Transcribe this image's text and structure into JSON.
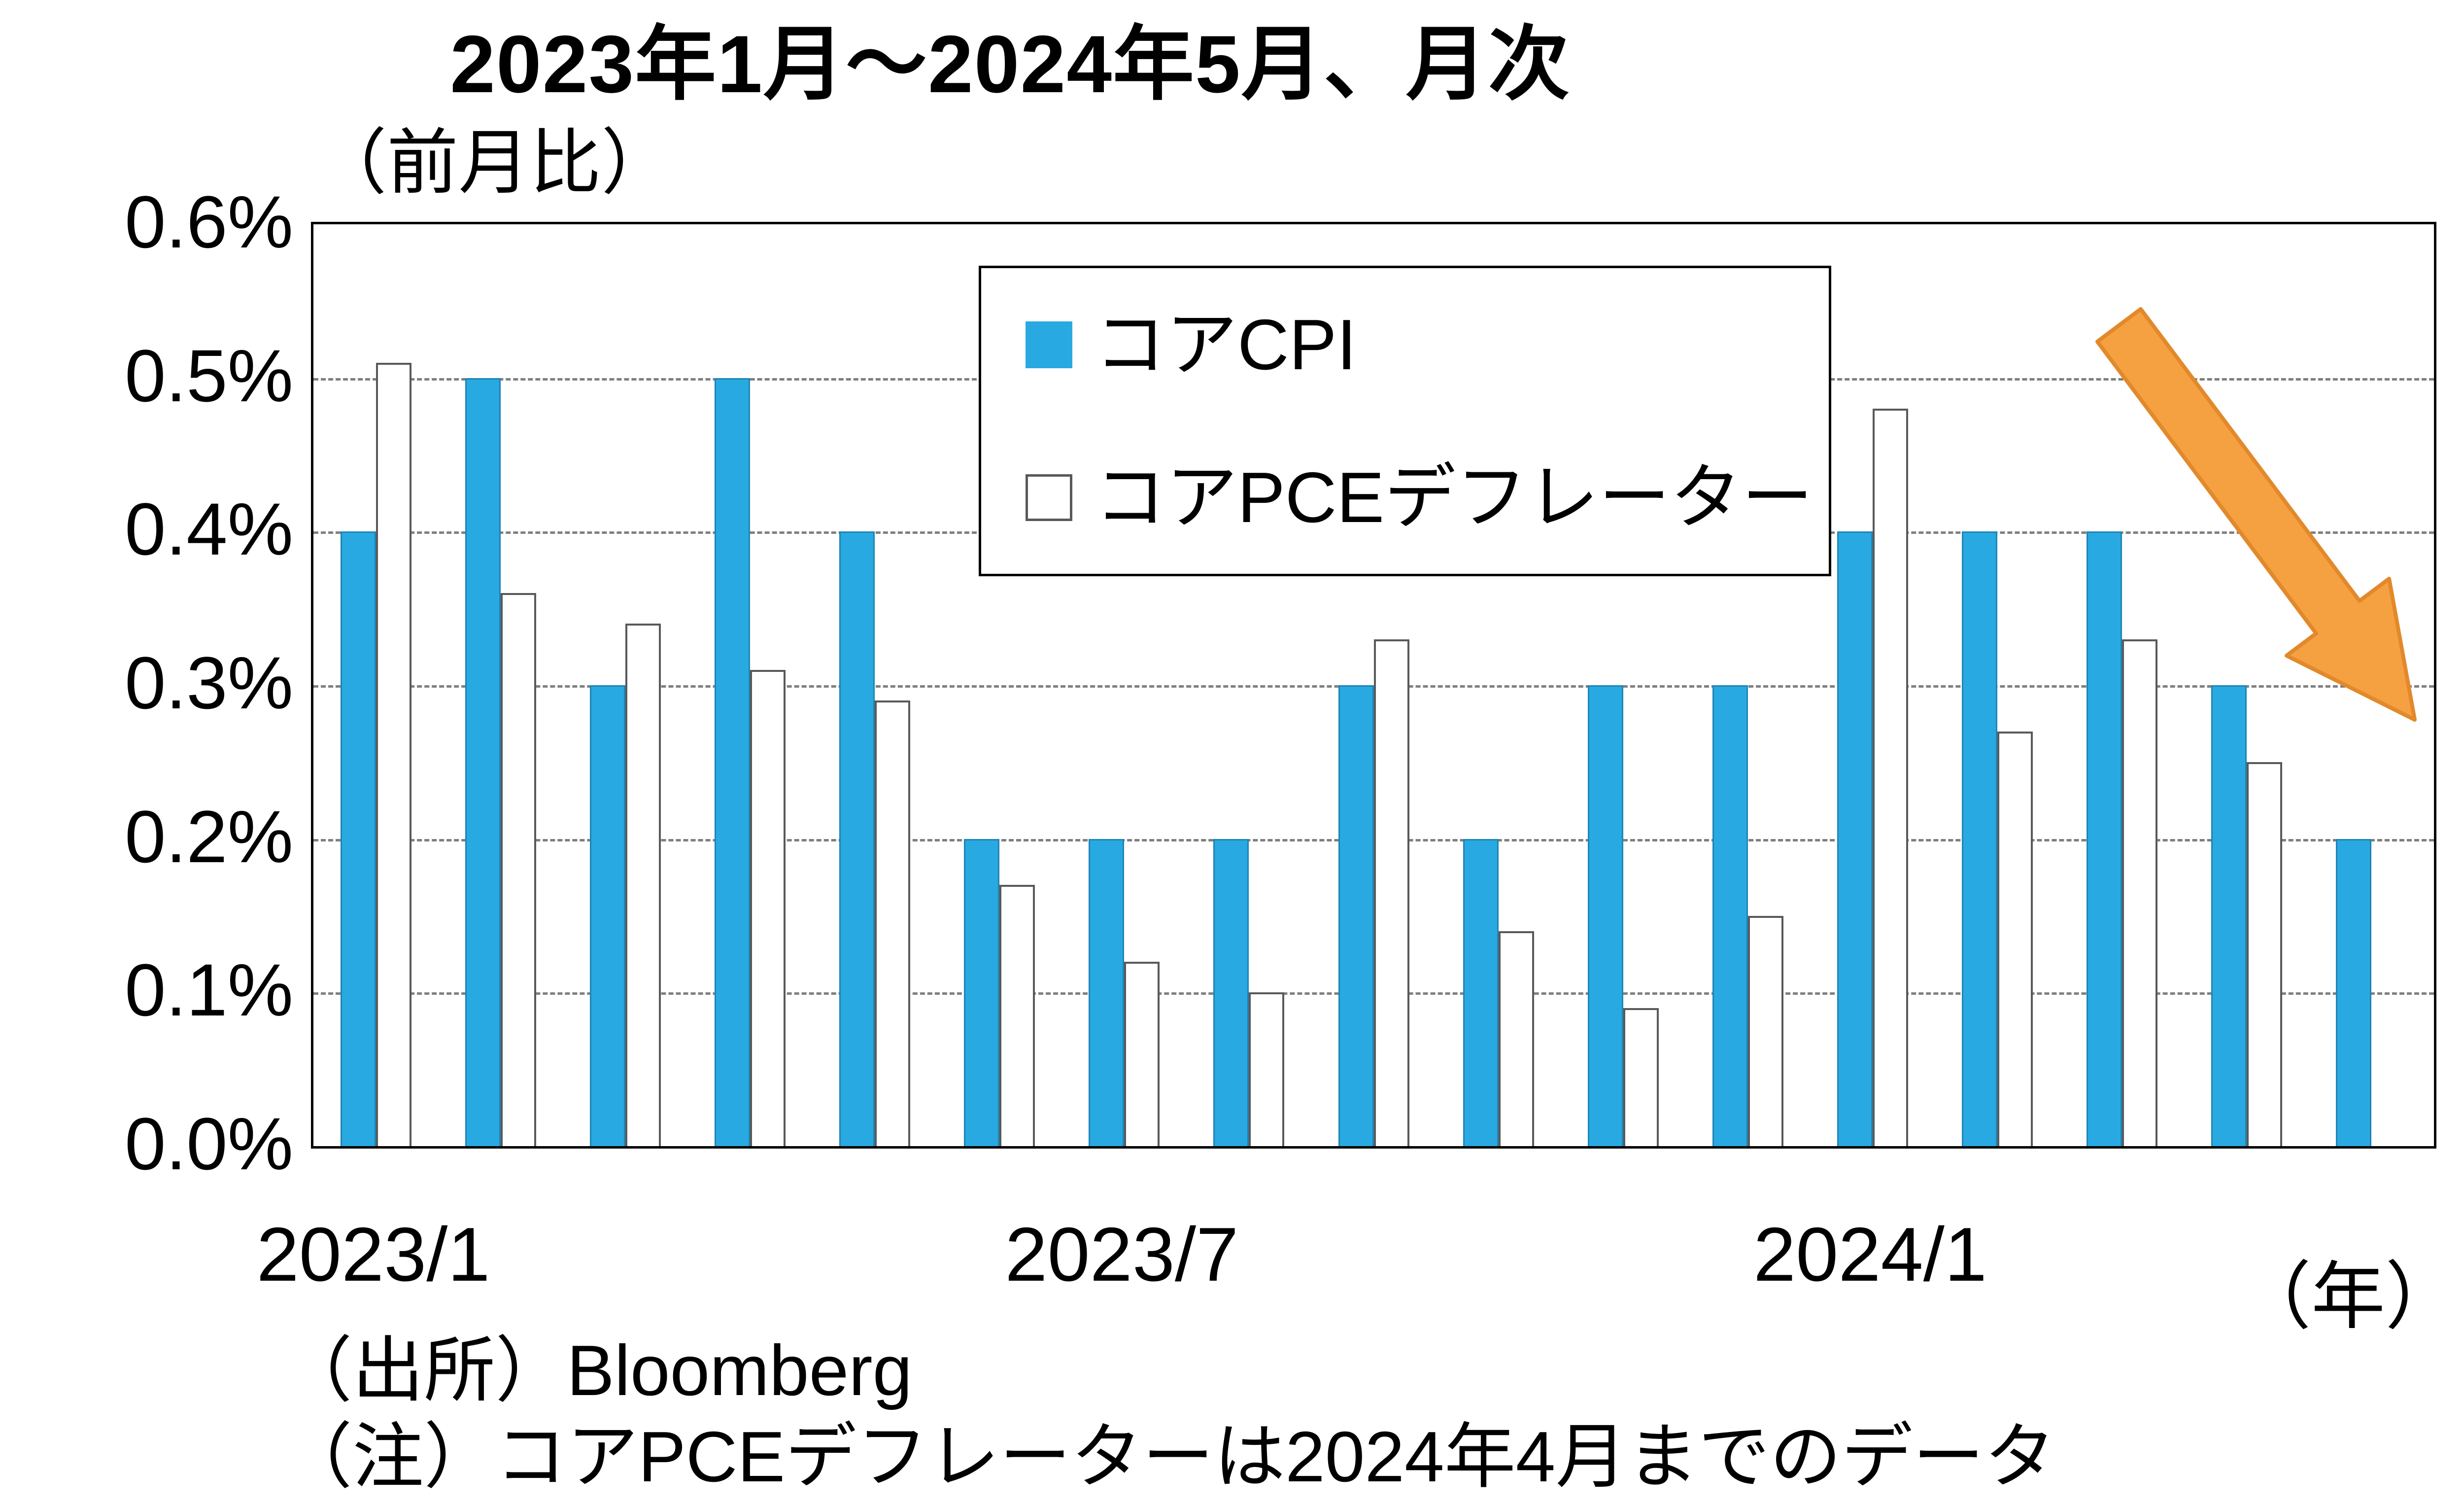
{
  "title": "2023年1月～2024年5月、月次",
  "y_axis_unit_label": "（前月比）",
  "x_axis_unit_label": "（年）",
  "source": "（出所）Bloomberg",
  "note": "（注）コアPCEデフレーターは2024年4月までのデータ",
  "colors": {
    "cpi_bar": "#29A9E1",
    "pce_bar_fill": "#FFFFFF",
    "pce_bar_border": "#595959",
    "gridline": "#7f7f7f",
    "arrow_fill": "#F5A142",
    "arrow_stroke": "#E2892B"
  },
  "chart_data": {
    "type": "bar",
    "categories": [
      "2023/1",
      "2023/2",
      "2023/3",
      "2023/4",
      "2023/5",
      "2023/6",
      "2023/7",
      "2023/8",
      "2023/9",
      "2023/10",
      "2023/11",
      "2023/12",
      "2024/1",
      "2024/2",
      "2024/3",
      "2024/4",
      "2024/5"
    ],
    "series": [
      {
        "name": "コアCPI",
        "values": [
          0.4,
          0.5,
          0.3,
          0.5,
          0.4,
          0.2,
          0.2,
          0.2,
          0.3,
          0.2,
          0.3,
          0.3,
          0.4,
          0.4,
          0.4,
          0.3,
          0.2
        ]
      },
      {
        "name": "コアPCEデフレーター",
        "values": [
          0.51,
          0.36,
          0.34,
          0.31,
          0.29,
          0.17,
          0.12,
          0.1,
          0.33,
          0.14,
          0.09,
          0.15,
          0.48,
          0.27,
          0.33,
          0.25,
          null
        ]
      }
    ],
    "title": "2023年1月～2024年5月、月次",
    "xlabel": "（年）",
    "ylabel": "（前月比）",
    "ylim": [
      0,
      0.6
    ],
    "yticks": [
      "0.6%",
      "0.5%",
      "0.4%",
      "0.3%",
      "0.2%",
      "0.1%",
      "0.0%"
    ],
    "x_tick_labels": [
      {
        "index": 0,
        "label": "2023/1"
      },
      {
        "index": 6,
        "label": "2023/7"
      },
      {
        "index": 12,
        "label": "2024/1"
      }
    ],
    "grid": "horizontal-dashed",
    "legend_position": "top-center-inside",
    "annotation": "orange arrow pointing down-right over last bars"
  }
}
